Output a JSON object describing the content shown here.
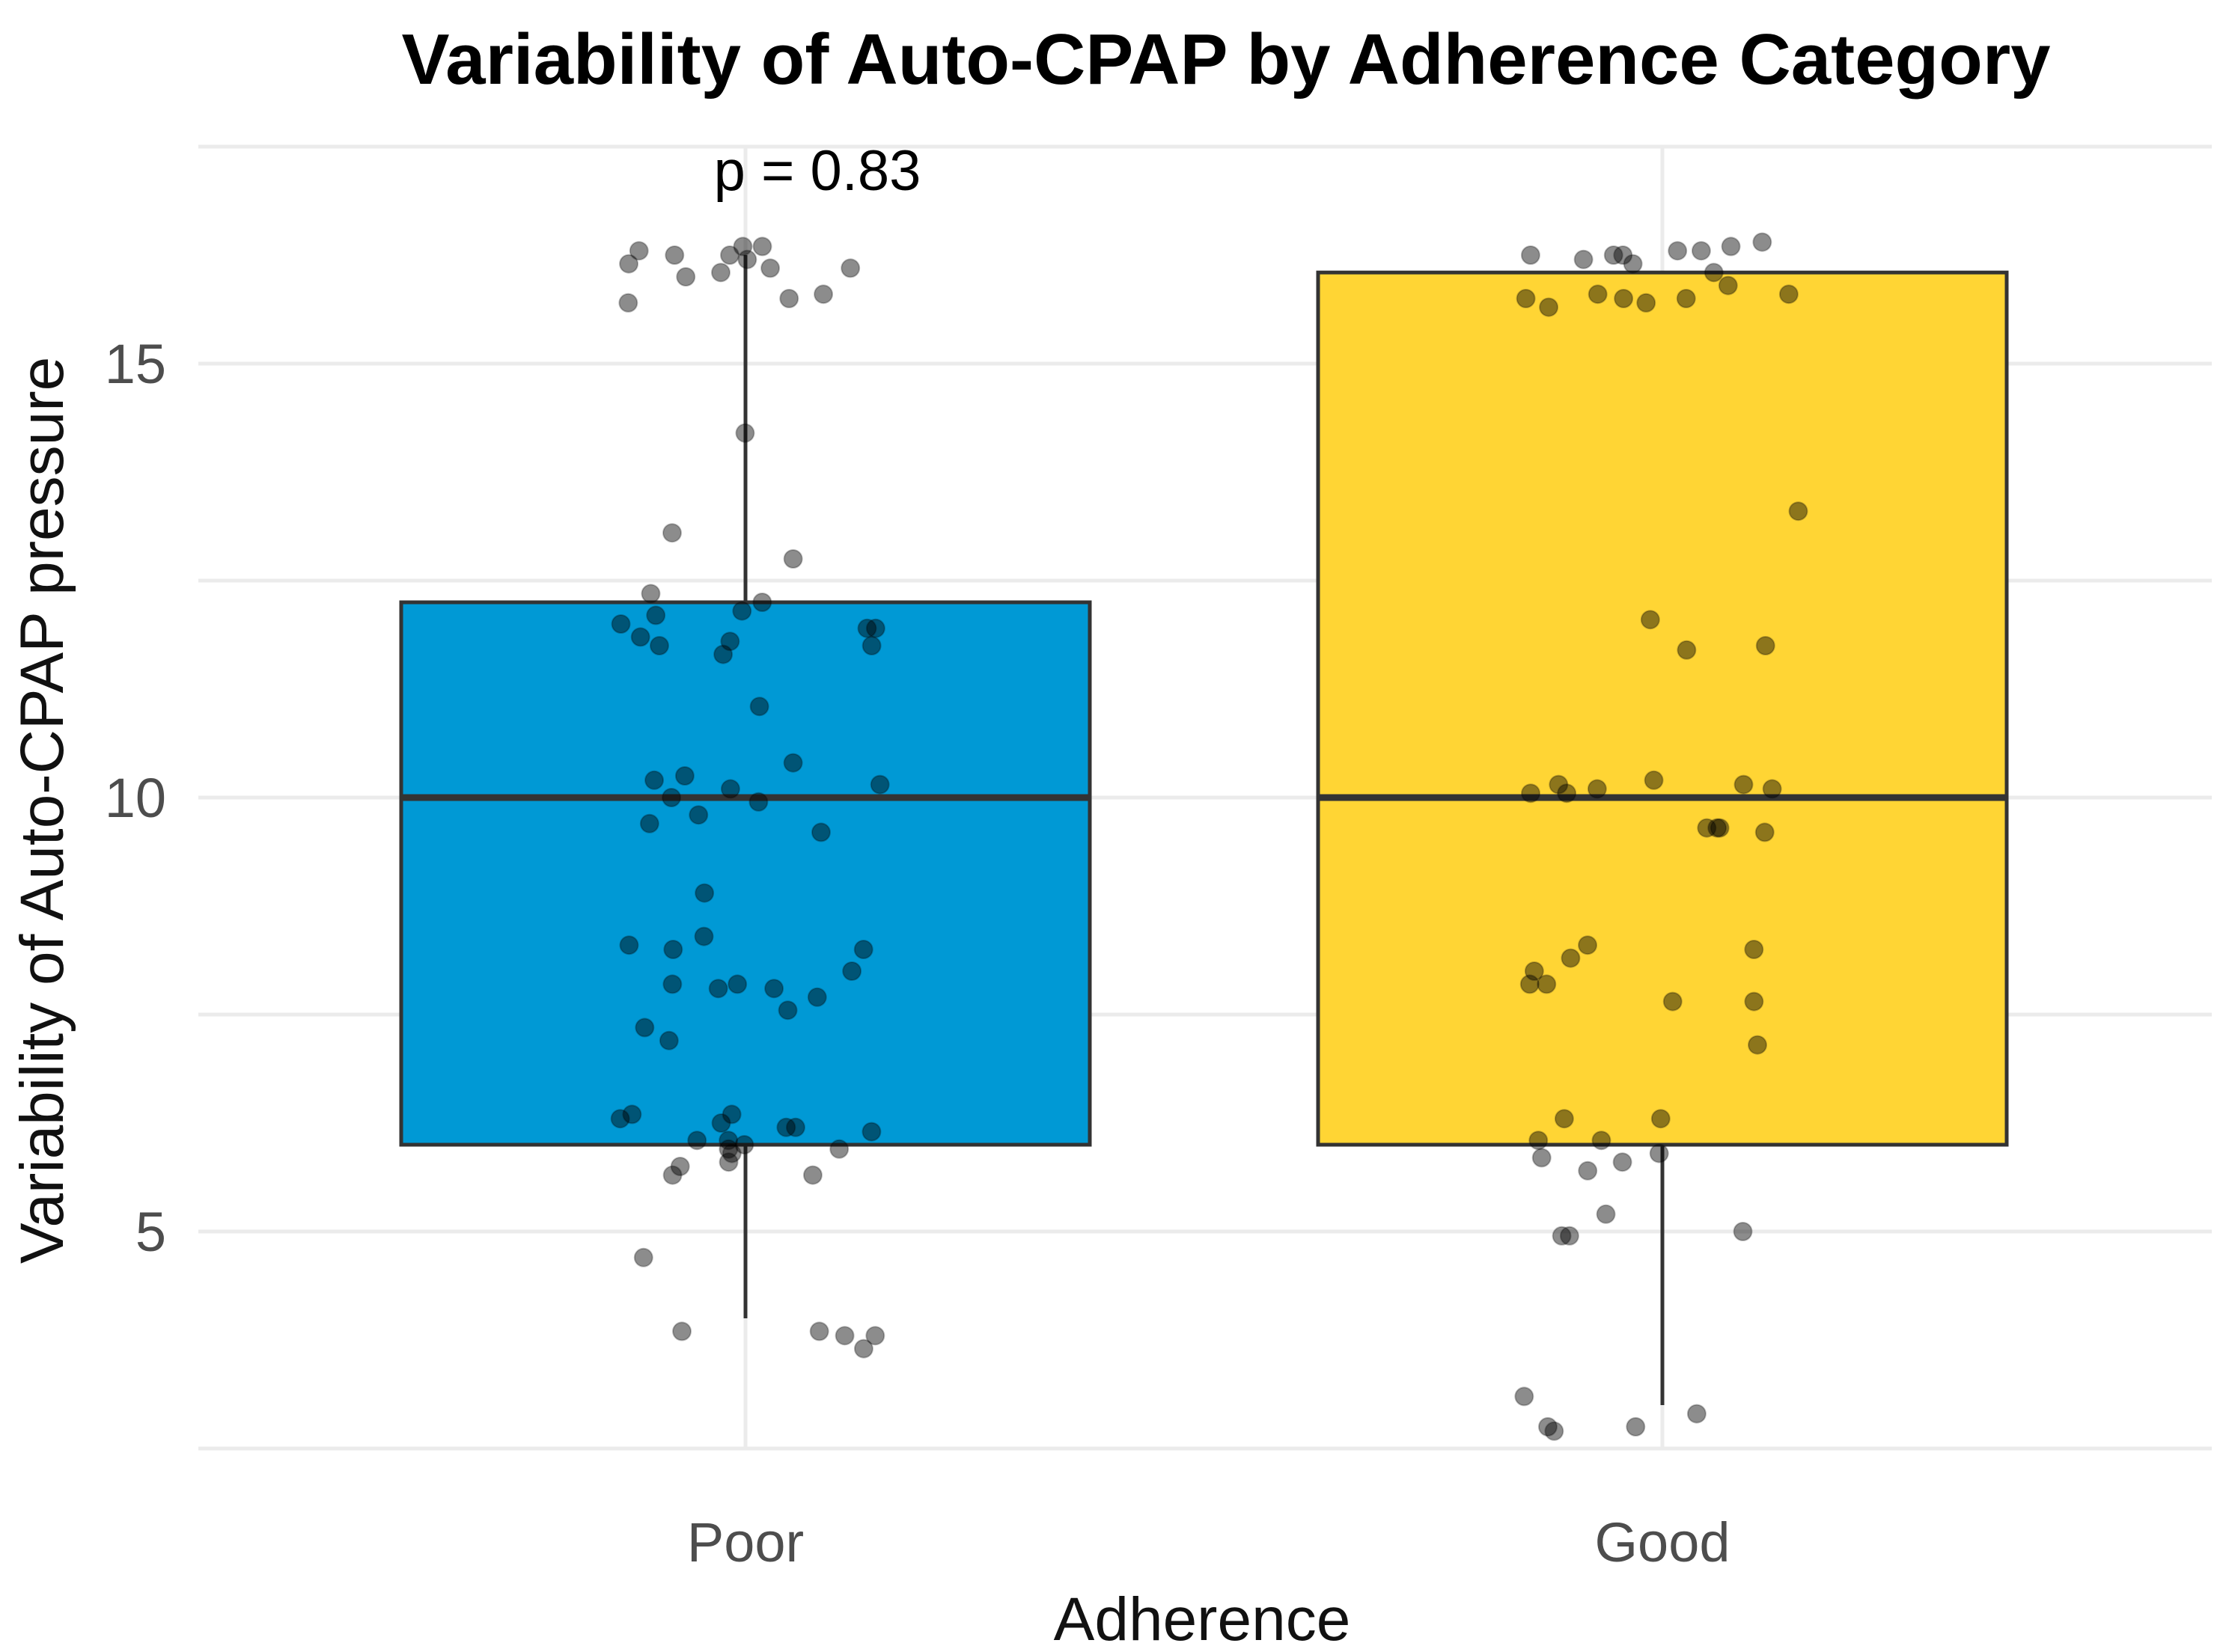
{
  "chart_data": {
    "type": "box",
    "title": "Variability of Auto-CPAP by Adherence Category",
    "xlabel": "Adherence",
    "ylabel": "Variability of Auto-CPAP pressure",
    "categories": [
      "Poor",
      "Good"
    ],
    "ylim": [
      2.5,
      17.5
    ],
    "yticks": [
      5,
      10,
      15
    ],
    "grid": true,
    "annotation": "p = 0.83",
    "fill_colors": [
      "#0099D5",
      "#FFD534"
    ],
    "boxes": [
      {
        "category": "Poor",
        "whisker_low": 4.0,
        "q1": 6.0,
        "median": 10.0,
        "q3": 12.25,
        "whisker_high": 16.25
      },
      {
        "category": "Good",
        "whisker_low": 3.0,
        "q1": 6.0,
        "median": 10.0,
        "q3": 16.05,
        "whisker_high": 16.05
      }
    ],
    "points": [
      {
        "category": "Poor",
        "values": [
          16.35,
          16.35,
          16.3,
          16.25,
          16.25,
          16.2,
          16.15,
          16.1,
          16.1,
          16.05,
          16.0,
          15.8,
          15.75,
          15.7,
          14.2,
          13.05,
          12.75,
          12.35,
          12.25,
          12.15,
          12.1,
          12.0,
          11.95,
          11.95,
          11.85,
          11.8,
          11.75,
          11.75,
          11.65,
          11.05,
          10.4,
          10.25,
          10.2,
          10.15,
          10.1,
          10.0,
          9.95,
          9.8,
          9.7,
          9.6,
          8.9,
          8.4,
          8.3,
          8.25,
          8.25,
          8.0,
          7.85,
          7.85,
          7.8,
          7.8,
          7.7,
          7.55,
          7.35,
          7.2,
          6.35,
          6.35,
          6.3,
          6.25,
          6.2,
          6.2,
          6.15,
          6.05,
          6.05,
          6.0,
          5.95,
          5.95,
          5.9,
          5.8,
          5.75,
          5.65,
          5.65,
          4.7,
          3.85,
          3.85,
          3.8,
          3.8,
          3.65
        ]
      },
      {
        "category": "Good",
        "values": [
          16.4,
          16.35,
          16.3,
          16.3,
          16.25,
          16.25,
          16.25,
          16.2,
          16.15,
          16.05,
          15.9,
          15.8,
          15.8,
          15.75,
          15.75,
          15.75,
          15.7,
          15.65,
          13.3,
          12.05,
          11.75,
          11.7,
          10.2,
          10.15,
          10.15,
          10.1,
          10.1,
          10.05,
          10.05,
          9.65,
          9.65,
          9.65,
          9.6,
          8.3,
          8.25,
          8.15,
          8.0,
          7.85,
          7.85,
          7.65,
          7.65,
          7.15,
          6.3,
          6.3,
          6.05,
          6.05,
          5.9,
          5.85,
          5.8,
          5.7,
          5.2,
          5.0,
          4.95,
          4.95,
          3.1,
          2.9,
          2.75,
          2.75,
          2.7
        ]
      }
    ]
  }
}
